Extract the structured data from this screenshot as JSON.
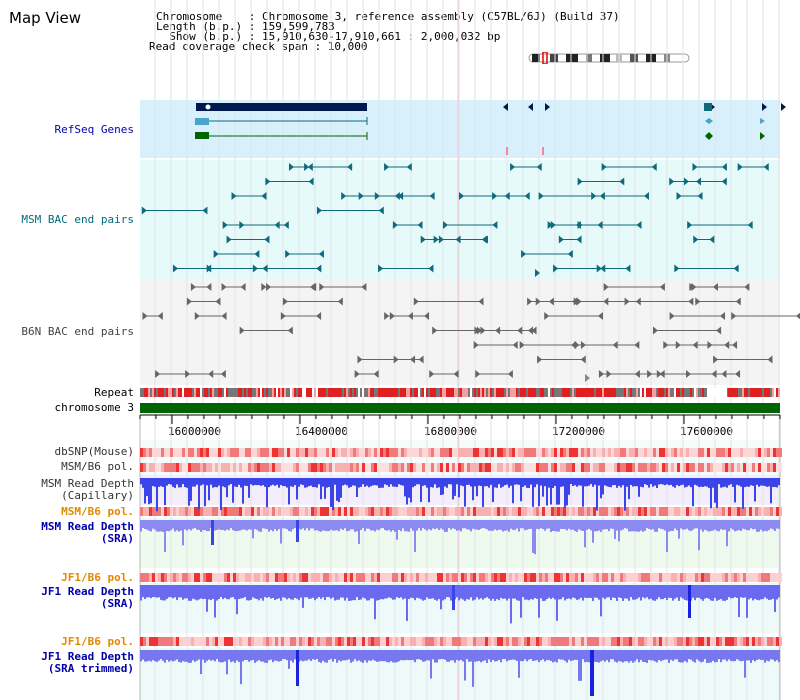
{
  "title": "Map View",
  "info": {
    "line1": "Chromosome    : Chromosome 3, reference assembly (C57BL/6J) (Build 37)",
    "line2": "Length (b.p.) : 159,599,783",
    "line3": "  Show (b.p.) : 15,910,630-17,910,661 : 2,000,032 bp",
    "line4": "Read coverage check span : 10,000"
  },
  "tracks": {
    "refseq": "RefSeq Genes",
    "msm_bac": "MSM BAC end pairs",
    "b6n_bac": "B6N BAC end pairs",
    "repeat": "Repeat",
    "chromosome": "chromosome 3",
    "dbsnp": "dbSNP(Mouse)",
    "msm_b6_pol": "MSM/B6 pol.",
    "msm_depth_cap": "MSM Read Depth\n(Capillary)",
    "msm_b6_pol2": "MSM/B6 pol.",
    "msm_depth_sra": "MSM Read Depth\n(SRA)",
    "jf1_b6_pol": "JF1/B6 pol.",
    "jf1_depth_sra": "JF1 Read Depth\n(SRA)",
    "jf1_b6_pol2": "JF1/B6 pol.",
    "jf1_depth_trim": "JF1 Read Depth\n(SRA trimmed)"
  },
  "axis": {
    "ticks": [
      "16000000",
      "16400000",
      "16800000",
      "17200000",
      "17600000"
    ]
  },
  "colors": {
    "refseq_bg": "#d8f0fb",
    "msm_bg": "#e6fafa",
    "b6n_bg": "#f4f4f4",
    "cap_bg": "#f4eefa",
    "sra_bg": "#eefaee",
    "jf1_bg": "#eefafa",
    "navy": "#001a4e",
    "teal": "#0e6b7d",
    "green": "#006400",
    "label_blue": "#0000aa",
    "label_teal": "#006b7b",
    "label_orange": "#e08a00"
  }
}
